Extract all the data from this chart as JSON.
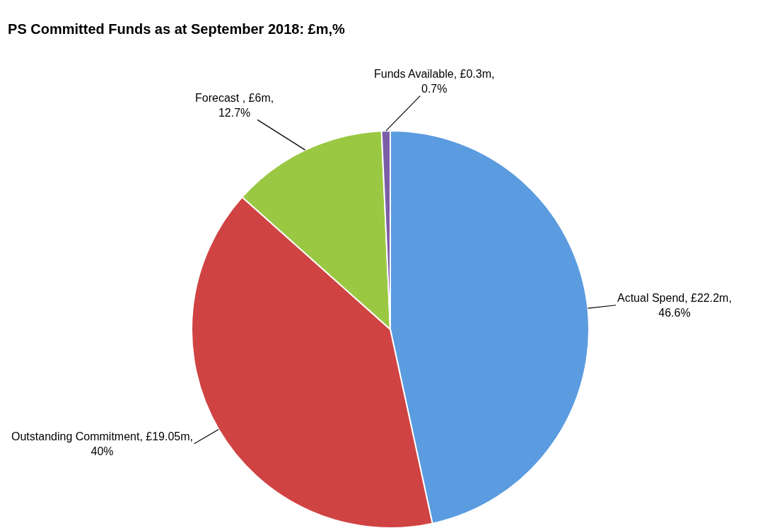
{
  "chart_data": {
    "type": "pie",
    "title": "PS Committed Funds as at September 2018: £m,%",
    "categories": [
      "Actual Spend",
      "Outstanding Commitment",
      "Forecast ",
      "Funds Available"
    ],
    "values": [
      46.6,
      40,
      12.7,
      0.7
    ],
    "value_labels": [
      "£22.2m, 46.6%",
      "£19.05m, 40%",
      "£6m, 12.7%",
      "£0.3m, 0.7%"
    ],
    "colors": [
      "#5b9be0",
      "#d04343",
      "#9bc843",
      "#7b5ea8"
    ],
    "legend": false
  }
}
